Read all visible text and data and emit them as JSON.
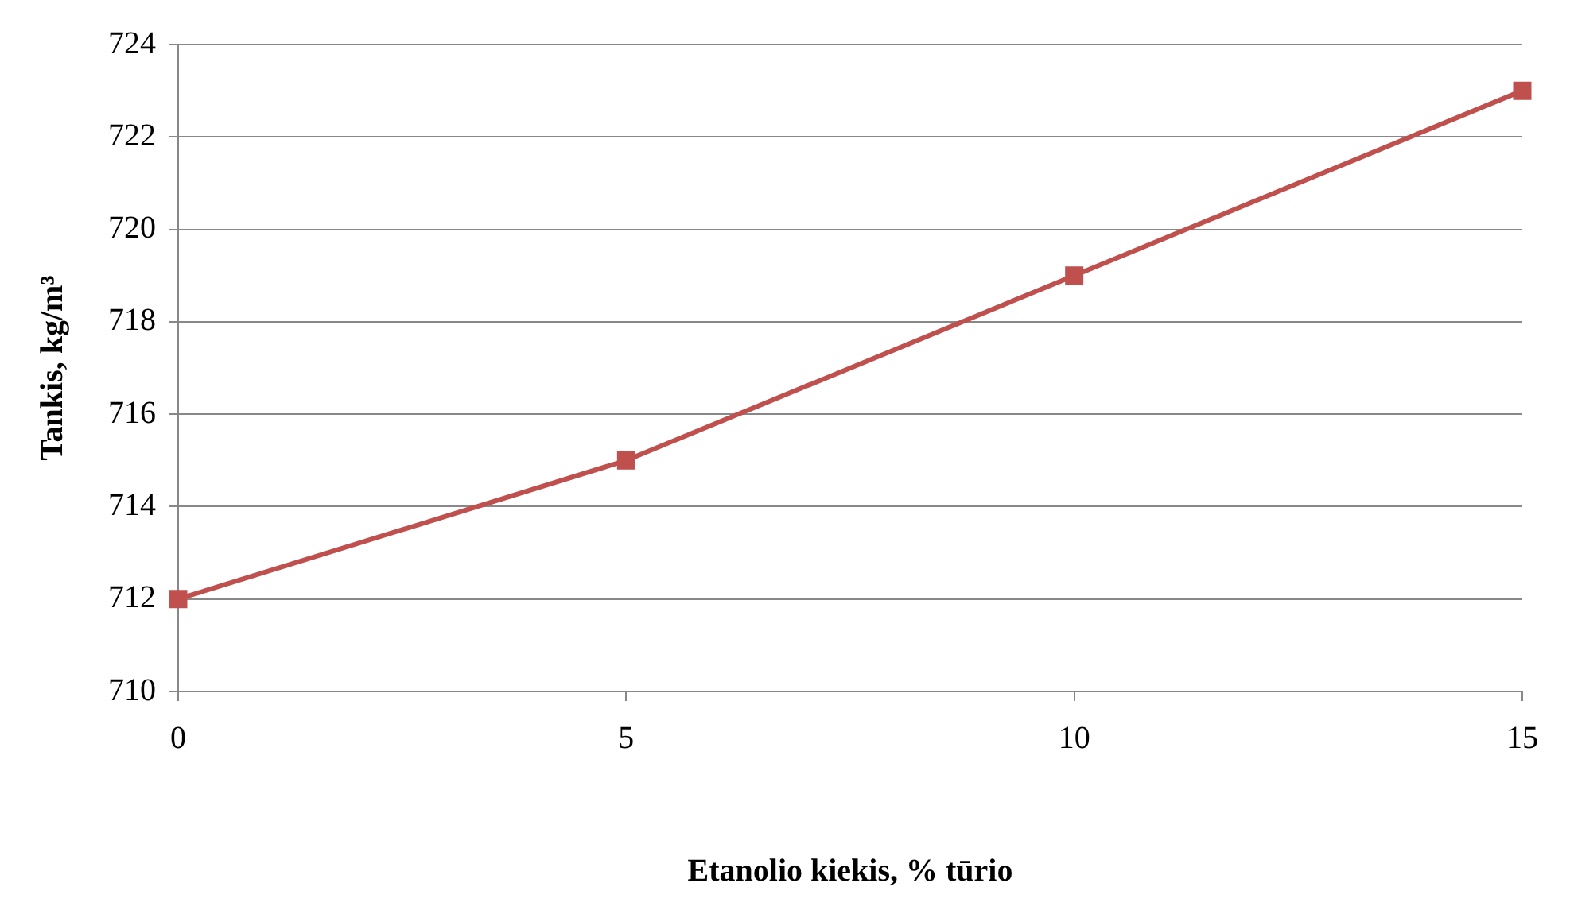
{
  "chart_data": {
    "type": "line",
    "xlabel": "Etanolio kiekis, % tūrio",
    "ylabel": "Tankis, kg/m³",
    "x": [
      0,
      5,
      10,
      15
    ],
    "series": [
      {
        "color": "#c0504d",
        "values": [
          712,
          715,
          719,
          723
        ]
      }
    ],
    "xlim": [
      0,
      15
    ],
    "xticks": [
      0,
      5,
      10,
      15
    ],
    "ylim": [
      710,
      724
    ],
    "yticks": [
      710,
      712,
      714,
      716,
      718,
      720,
      722,
      724
    ],
    "grid": "y",
    "legend": false,
    "marker": "square",
    "line_style": "solid"
  }
}
